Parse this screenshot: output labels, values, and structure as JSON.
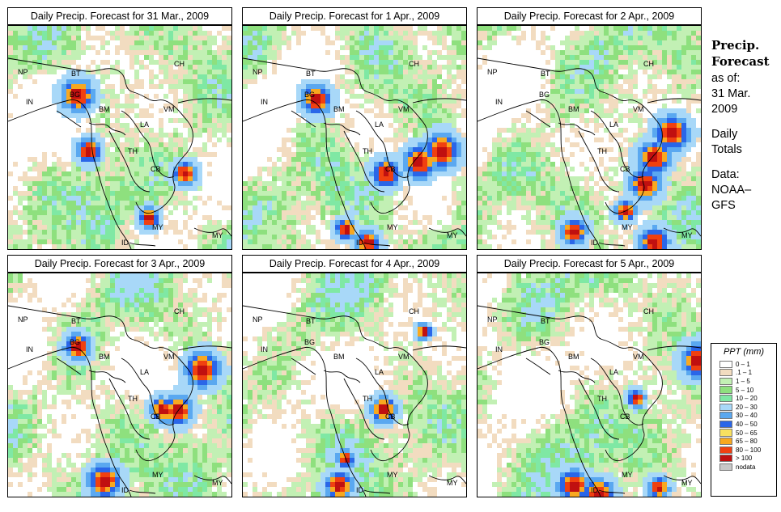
{
  "panels": [
    {
      "title": "Daily Precip. Forecast for  31 Mar., 2009",
      "hot": [
        [
          0.3,
          0.3,
          0.95
        ],
        [
          0.78,
          0.65,
          0.7
        ],
        [
          0.62,
          0.85,
          0.6
        ],
        [
          0.35,
          0.55,
          0.7
        ]
      ]
    },
    {
      "title": "Daily Precip. Forecast for  1 Apr., 2009",
      "hot": [
        [
          0.88,
          0.55,
          1.0
        ],
        [
          0.78,
          0.6,
          0.95
        ],
        [
          0.63,
          0.65,
          0.8
        ],
        [
          0.55,
          0.96,
          0.7
        ],
        [
          0.32,
          0.32,
          0.85
        ],
        [
          0.45,
          0.9,
          0.6
        ]
      ]
    },
    {
      "title": "Daily Precip. Forecast for  2 Apr., 2009",
      "hot": [
        [
          0.86,
          0.47,
          1.0
        ],
        [
          0.78,
          0.58,
          0.95
        ],
        [
          0.74,
          0.7,
          0.9
        ],
        [
          0.65,
          0.82,
          0.6
        ],
        [
          0.78,
          0.96,
          0.85
        ],
        [
          0.42,
          0.91,
          0.75
        ]
      ]
    },
    {
      "title": "Daily Precip. Forecast for  3 Apr., 2009",
      "hot": [
        [
          0.86,
          0.42,
          1.0
        ],
        [
          0.75,
          0.6,
          0.85
        ],
        [
          0.68,
          0.6,
          0.7
        ],
        [
          0.42,
          0.92,
          0.95
        ],
        [
          0.3,
          0.32,
          0.75
        ]
      ]
    },
    {
      "title": "Daily Precip. Forecast for  4 Apr., 2009",
      "hot": [
        [
          0.62,
          0.6,
          0.75
        ],
        [
          0.42,
          0.94,
          0.8
        ],
        [
          0.45,
          0.82,
          0.5
        ],
        [
          0.8,
          0.25,
          0.45
        ]
      ]
    },
    {
      "title": "Daily Precip. Forecast for  5 Apr., 2009",
      "hot": [
        [
          0.98,
          0.38,
          1.0
        ],
        [
          0.53,
          0.98,
          0.9
        ],
        [
          0.42,
          0.94,
          0.9
        ],
        [
          0.8,
          0.95,
          0.6
        ],
        [
          0.7,
          0.55,
          0.5
        ]
      ]
    }
  ],
  "countries": [
    "NP",
    "BT",
    "CH",
    "IN",
    "BG",
    "BM",
    "VM",
    "LA",
    "TH",
    "CB",
    "MY",
    "ID",
    "MY"
  ],
  "sidebar": {
    "heading1": "Precip.",
    "heading2": "Forecast",
    "asof": "as of:",
    "date1": "31 Mar.",
    "date2": "2009",
    "daily1": "Daily",
    "daily2": "Totals",
    "data1": "Data:",
    "data2": "NOAA–",
    "data3": "GFS"
  },
  "legend": {
    "title": "PPT (mm)",
    "classes": [
      {
        "label": "0 – 1",
        "color": "#ffffff"
      },
      {
        "label": ".1 – 1",
        "color": "#f2dcc0"
      },
      {
        "label": "1 – 5",
        "color": "#c2f0b4"
      },
      {
        "label": "5 – 10",
        "color": "#8ee07e"
      },
      {
        "label": "10 – 20",
        "color": "#7fe8a4"
      },
      {
        "label": "20 – 30",
        "color": "#a8d8f8"
      },
      {
        "label": "30 – 40",
        "color": "#5aa8f0"
      },
      {
        "label": "40 – 50",
        "color": "#2a66e8"
      },
      {
        "label": "50 – 65",
        "color": "#f8e060"
      },
      {
        "label": "65 – 80",
        "color": "#f8a820"
      },
      {
        "label": "80 – 100",
        "color": "#f04010"
      },
      {
        "label": "> 100",
        "color": "#c01010"
      },
      {
        "label": "nodata",
        "color": "#c8c8c8"
      }
    ]
  }
}
